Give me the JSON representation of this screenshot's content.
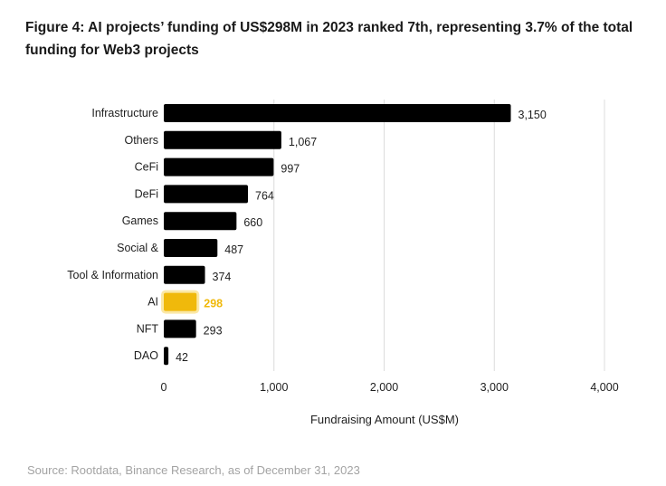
{
  "title": "Figure 4: AI projects’ funding of US$298M in 2023 ranked 7th, representing 3.7% of the total funding for Web3 projects",
  "source": "Source: Rootdata, Binance Research, as of December 31, 2023",
  "colors": {
    "bar": "#000000",
    "highlight": "#f0b90b",
    "highlight_glow": "#fbe8a6",
    "grid": "#dcdcdc",
    "text": "#1e1e1e",
    "source": "#a3a3a3"
  },
  "chart_data": {
    "type": "bar",
    "orientation": "horizontal",
    "categories": [
      "Infrastructure",
      "Others",
      "CeFi",
      "DeFi",
      "Games",
      "Social &",
      "Tool & Information",
      "AI",
      "NFT",
      "DAO"
    ],
    "values": [
      3150,
      1067,
      997,
      764,
      660,
      487,
      374,
      298,
      293,
      42
    ],
    "value_labels": [
      "3,150",
      "1,067",
      "997",
      "764",
      "660",
      "487",
      "374",
      "298",
      "293",
      "42"
    ],
    "highlight": "AI",
    "xlabel": "Fundraising Amount (US$M)",
    "xlim": [
      0,
      4000
    ],
    "xticks": [
      0,
      1000,
      2000,
      3000,
      4000
    ],
    "xtick_labels": [
      "0",
      "1,000",
      "2,000",
      "3,000",
      "4,000"
    ],
    "grid": "vertical"
  }
}
